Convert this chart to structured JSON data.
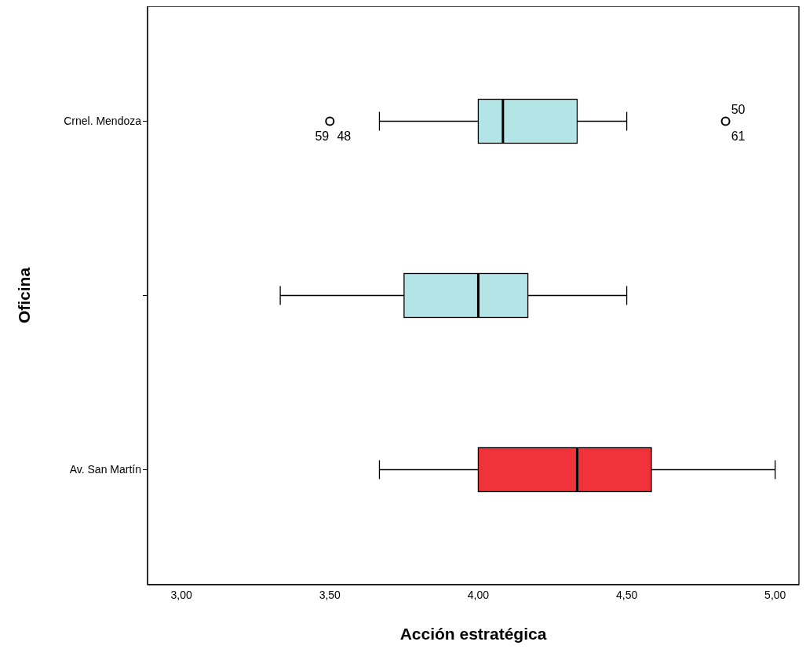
{
  "chart_data": {
    "type": "box",
    "orientation": "horizontal",
    "xlabel": "Acción estratégica",
    "ylabel": "Oficina",
    "categories": [
      "Crnel. Mendoza",
      null,
      "Av. San Martín"
    ],
    "boxes": [
      {
        "low": 3.667,
        "q1": 4.0,
        "median": 4.083,
        "q3": 4.333,
        "high": 4.5,
        "outliers": [
          3.5,
          4.833
        ]
      },
      {
        "low": 3.333,
        "q1": 3.75,
        "median": 4.0,
        "q3": 4.167,
        "high": 4.5
      },
      {
        "low": 3.667,
        "q1": 4.0,
        "median": 4.333,
        "q3": 4.583,
        "high": 5.0
      }
    ],
    "colors": [
      "#b4e5e6",
      "#b4e5e6",
      "#f0333a"
    ],
    "xlim": [
      2.886,
      5.08
    ],
    "xticks": [
      {
        "value": 3,
        "label": "3,00"
      },
      {
        "value": 3.5,
        "label": "3,50"
      },
      {
        "value": 4,
        "label": "4,00"
      },
      {
        "value": 4.5,
        "label": "4,50"
      },
      {
        "value": 5,
        "label": "5,00"
      }
    ],
    "marker": "circle",
    "grid": false,
    "annotations": [
      "59",
      "48",
      "50",
      "61"
    ]
  }
}
